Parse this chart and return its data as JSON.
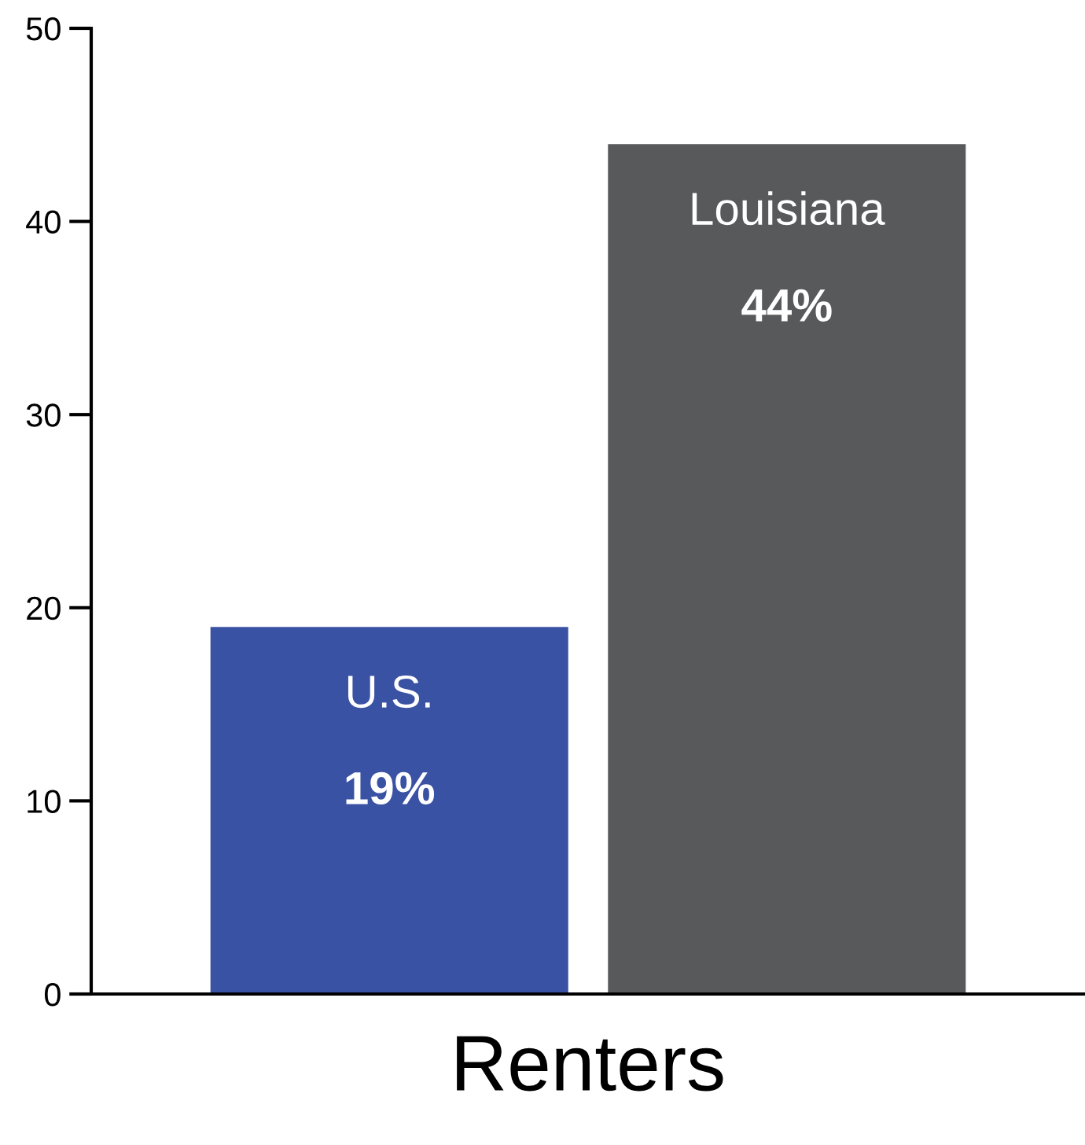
{
  "chart_data": {
    "type": "bar",
    "xlabel": "Renters",
    "categories": [
      "U.S.",
      "Louisiana"
    ],
    "values": [
      19,
      44
    ],
    "colors": [
      "#3a52a3",
      "#58595b"
    ],
    "value_labels": [
      "19%",
      "44%"
    ],
    "ylim": [
      0,
      50
    ],
    "yticks": [
      0,
      10,
      20,
      30,
      40,
      50
    ],
    "grid": false,
    "legend": false
  }
}
